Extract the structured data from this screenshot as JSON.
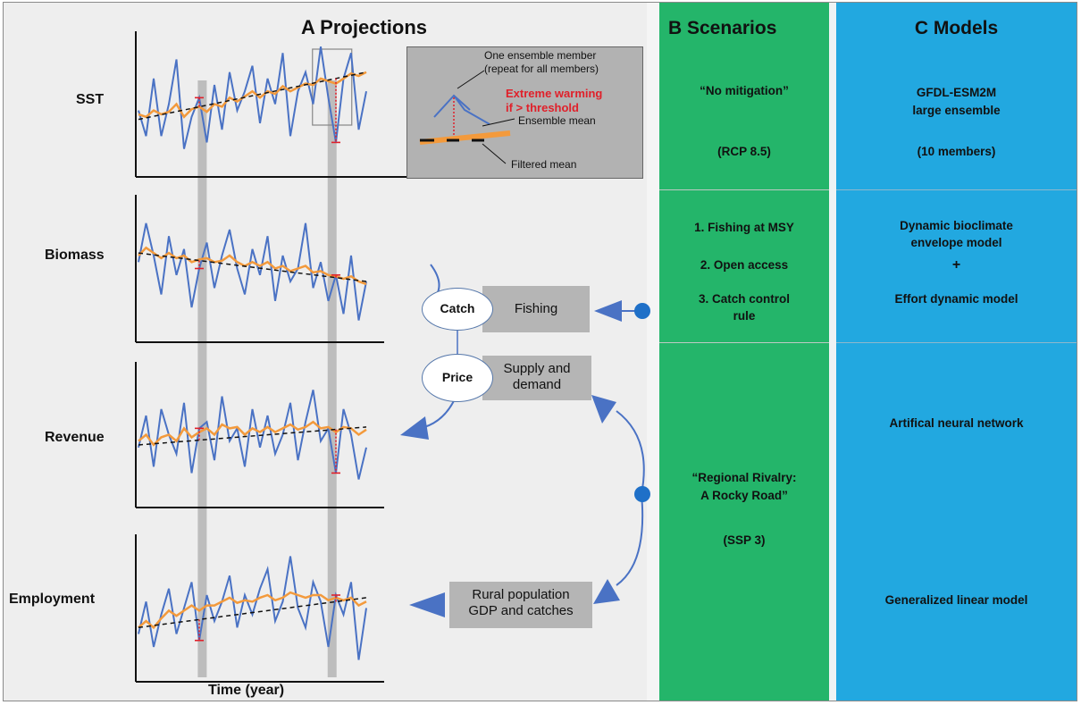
{
  "panelA": {
    "title": "A  Projections",
    "rows": [
      "SST",
      "Biomass",
      "Revenue",
      "Employment"
    ],
    "xlabel": "Time (year)",
    "legend": {
      "member_line1": "One ensemble member",
      "member_line2": "(repeat for all members)",
      "extreme_line1": "Extreme warming",
      "extreme_line2": "if > threshold",
      "ensemble_mean": "Ensemble mean",
      "filtered_mean": "Filtered mean"
    },
    "flow": {
      "catch": "Catch",
      "fishing": "Fishing",
      "price": "Price",
      "supply_line1": "Supply and",
      "supply_line2": "demand",
      "rural_line1": "Rural population",
      "rural_line2": "GDP and catches"
    }
  },
  "panelB": {
    "title": "B  Scenarios",
    "no_mitigation": "“No mitigation”",
    "rcp": "(RCP 8.5)",
    "fishing_1": "1. Fishing at MSY",
    "fishing_2": "2. Open access",
    "fishing_3a": "3. Catch control",
    "fishing_3b": "rule",
    "rivalry_1": "“Regional Rivalry:",
    "rivalry_2": "A Rocky Road”",
    "ssp": "(SSP 3)"
  },
  "panelC": {
    "title": "C  Models",
    "esm_1": "GFDL-ESM2M",
    "esm_2": "large ensemble",
    "members": "(10 members)",
    "dbem_1": "Dynamic bioclimate",
    "dbem_2": "envelope model",
    "plus": "+",
    "effort": "Effort dynamic model",
    "ann": "Artifical neural network",
    "glm": "Generalized linear model"
  },
  "colors": {
    "member": "#4a72c4",
    "filtered": "#f39a3c",
    "ensemble": "#111111",
    "extreme": "#e0202a",
    "highlight": "#b0b0b0",
    "scenarios_bg": "#24b56a",
    "models_bg": "#22a8e0"
  },
  "chart_data": {
    "type": "line",
    "series": [
      {
        "name": "One ensemble member",
        "profiles": {
          "SST": [
            0.45,
            0.25,
            0.7,
            0.25,
            0.5,
            0.85,
            0.15,
            0.4,
            0.55,
            0.2,
            0.65,
            0.3,
            0.75,
            0.45,
            0.6,
            0.8,
            0.35,
            0.7,
            0.5,
            0.9,
            0.25,
            0.6,
            0.75,
            0.5,
            0.95,
            0.55,
            0.2,
            0.7,
            0.9,
            0.3,
            0.6
          ],
          "Biomass": [
            0.55,
            0.85,
            0.6,
            0.3,
            0.75,
            0.45,
            0.65,
            0.2,
            0.5,
            0.7,
            0.35,
            0.6,
            0.8,
            0.5,
            0.3,
            0.65,
            0.45,
            0.75,
            0.25,
            0.6,
            0.4,
            0.5,
            0.85,
            0.35,
            0.55,
            0.25,
            0.45,
            0.15,
            0.6,
            0.1,
            0.4
          ],
          "Revenue": [
            0.4,
            0.65,
            0.25,
            0.7,
            0.5,
            0.35,
            0.75,
            0.2,
            0.55,
            0.6,
            0.3,
            0.8,
            0.45,
            0.55,
            0.25,
            0.7,
            0.4,
            0.65,
            0.35,
            0.5,
            0.75,
            0.3,
            0.6,
            0.85,
            0.45,
            0.55,
            0.2,
            0.7,
            0.5,
            0.15,
            0.4
          ],
          "Employment": [
            0.3,
            0.55,
            0.2,
            0.45,
            0.65,
            0.3,
            0.5,
            0.7,
            0.25,
            0.6,
            0.4,
            0.55,
            0.75,
            0.35,
            0.6,
            0.45,
            0.65,
            0.8,
            0.4,
            0.55,
            0.9,
            0.5,
            0.35,
            0.7,
            0.55,
            0.2,
            0.6,
            0.45,
            0.7,
            0.1,
            0.5
          ]
        }
      },
      {
        "name": "Filtered mean",
        "profiles": {
          "SST": [
            0.42,
            0.4,
            0.45,
            0.42,
            0.44,
            0.5,
            0.4,
            0.46,
            0.48,
            0.44,
            0.5,
            0.48,
            0.55,
            0.52,
            0.56,
            0.6,
            0.55,
            0.6,
            0.58,
            0.64,
            0.6,
            0.63,
            0.66,
            0.65,
            0.7,
            0.68,
            0.66,
            0.7,
            0.74,
            0.72,
            0.75
          ],
          "Biomass": [
            0.6,
            0.66,
            0.62,
            0.58,
            0.62,
            0.58,
            0.6,
            0.55,
            0.57,
            0.58,
            0.55,
            0.56,
            0.6,
            0.55,
            0.52,
            0.55,
            0.52,
            0.55,
            0.5,
            0.52,
            0.48,
            0.5,
            0.52,
            0.47,
            0.48,
            0.45,
            0.44,
            0.42,
            0.44,
            0.4,
            0.38
          ],
          "Revenue": [
            0.45,
            0.5,
            0.42,
            0.48,
            0.5,
            0.45,
            0.55,
            0.48,
            0.52,
            0.55,
            0.5,
            0.58,
            0.55,
            0.56,
            0.5,
            0.55,
            0.52,
            0.56,
            0.52,
            0.55,
            0.58,
            0.54,
            0.56,
            0.6,
            0.55,
            0.56,
            0.52,
            0.56,
            0.55,
            0.5,
            0.54
          ],
          "Employment": [
            0.35,
            0.4,
            0.35,
            0.42,
            0.48,
            0.44,
            0.48,
            0.52,
            0.48,
            0.52,
            0.52,
            0.55,
            0.58,
            0.54,
            0.56,
            0.55,
            0.58,
            0.6,
            0.56,
            0.58,
            0.62,
            0.6,
            0.58,
            0.6,
            0.6,
            0.56,
            0.58,
            0.56,
            0.58,
            0.52,
            0.55
          ]
        }
      },
      {
        "name": "Ensemble mean",
        "profiles": {
          "SST": [
            0.38,
            0.75
          ],
          "Biomass": [
            0.62,
            0.4
          ],
          "Revenue": [
            0.42,
            0.56
          ],
          "Employment": [
            0.35,
            0.58
          ]
        }
      }
    ],
    "xlabel": "Time (year)",
    "extreme_events_at_fraction": [
      0.28,
      0.85
    ]
  }
}
